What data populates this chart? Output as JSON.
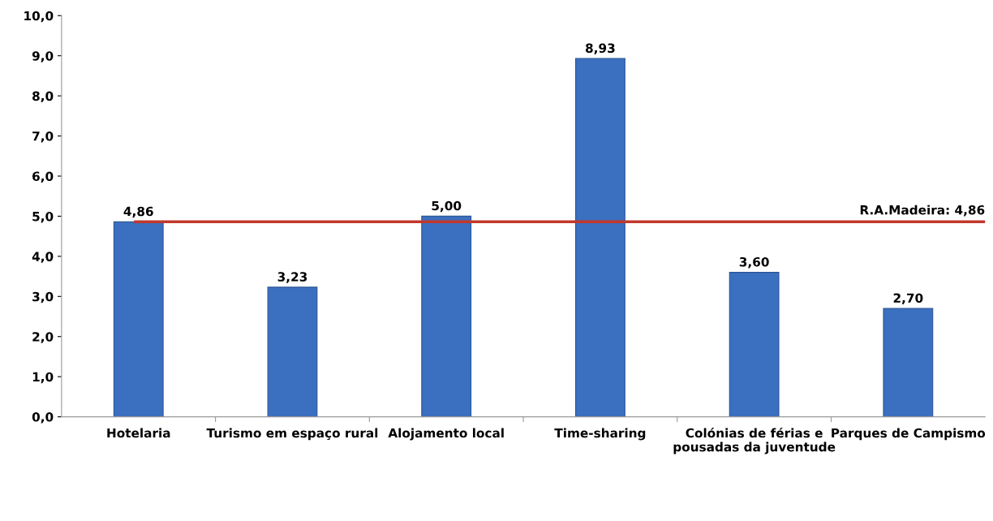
{
  "chart_data": {
    "type": "bar",
    "categories": [
      "Hotelaria",
      "Turismo em espaço rural",
      "Alojamento local",
      "Time-sharing",
      "Colónias de férias e pousadas da juventude",
      "Parques de Campismo"
    ],
    "values": [
      4.86,
      3.23,
      5.0,
      8.93,
      3.6,
      2.7
    ],
    "value_labels": [
      "4,86",
      "3,23",
      "5,00",
      "8,93",
      "3,60",
      "2,70"
    ],
    "color": "#3b6fbf",
    "ylim": [
      0,
      10
    ],
    "yticks": [
      {
        "value": 0,
        "label": "0,0"
      },
      {
        "value": 1,
        "label": "1,0"
      },
      {
        "value": 2,
        "label": "2,0"
      },
      {
        "value": 3,
        "label": "3,0"
      },
      {
        "value": 4,
        "label": "4,0"
      },
      {
        "value": 5,
        "label": "5,0"
      },
      {
        "value": 6,
        "label": "6,0"
      },
      {
        "value": 7,
        "label": "7,0"
      },
      {
        "value": 8,
        "label": "8,0"
      },
      {
        "value": 9,
        "label": "9,0"
      },
      {
        "value": 10,
        "label": "10,0"
      }
    ],
    "ref_lines": [
      {
        "axis": "y",
        "value": 4.86,
        "label": "R.A.Madeira: 4,86",
        "color": "#c0392b"
      }
    ],
    "grid": false,
    "legend": false
  }
}
